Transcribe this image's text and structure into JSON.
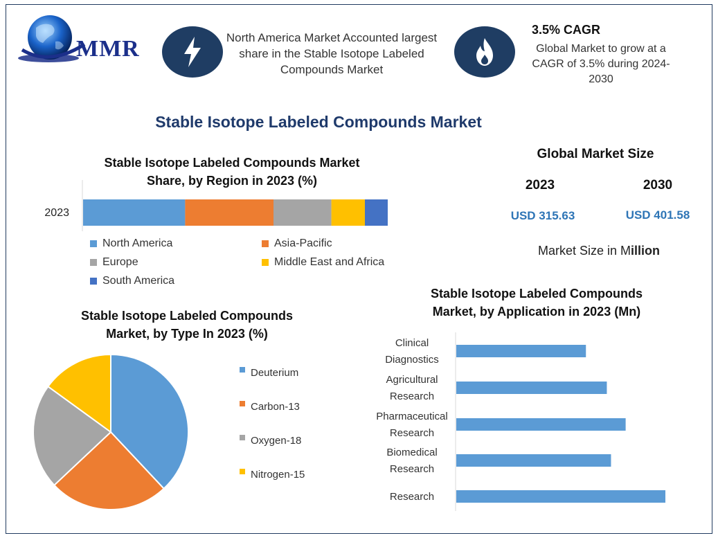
{
  "logo": {
    "text": "MMR"
  },
  "header": {
    "fact1": "North America Market Accounted largest share in the Stable Isotope Labeled Compounds Market",
    "cagr_title": "3.5% CAGR",
    "cagr_text": "Global Market to grow at a CAGR of 3.5% during 2024-2030"
  },
  "main_title": "Stable Isotope Labeled Compounds Market",
  "market_size": {
    "heading": "Global Market Size",
    "year1": "2023",
    "year2": "2030",
    "value1": "USD 315.63",
    "value2": "USD 401.58",
    "unit_prefix": "Market Size in M",
    "unit_suffix": "illion"
  },
  "colors": {
    "north_america": "#5b9bd5",
    "asia_pacific": "#ed7d31",
    "europe": "#a5a5a5",
    "mea": "#ffc000",
    "south_america": "#4472c4",
    "bar": "#5b9bd5"
  },
  "chart_data": [
    {
      "type": "bar",
      "orientation": "horizontal-stacked",
      "title_line1": "Stable Isotope Labeled Compounds Market",
      "title_line2": "Share, by Region in 2023 (%)",
      "categories": [
        "2023"
      ],
      "series": [
        {
          "name": "North America",
          "values": [
            33.5
          ],
          "color": "#5b9bd5"
        },
        {
          "name": "Asia-Pacific",
          "values": [
            29
          ],
          "color": "#ed7d31"
        },
        {
          "name": "Europe",
          "values": [
            19
          ],
          "color": "#a5a5a5"
        },
        {
          "name": "Middle East and Africa",
          "values": [
            11
          ],
          "color": "#ffc000"
        },
        {
          "name": "South America",
          "values": [
            7.5
          ],
          "color": "#4472c4"
        }
      ],
      "xlim": [
        0,
        100
      ],
      "legend": "bottom"
    },
    {
      "type": "pie",
      "title_line1": "Stable Isotope Labeled Compounds",
      "title_line2": "Market, by Type In 2023 (%)",
      "labels": [
        "Deuterium",
        "Carbon-13",
        "Oxygen-18",
        "Nitrogen-15"
      ],
      "values": [
        38,
        25,
        22,
        15
      ],
      "colors": [
        "#5b9bd5",
        "#ed7d31",
        "#a5a5a5",
        "#ffc000"
      ],
      "legend": "right"
    },
    {
      "type": "bar",
      "orientation": "horizontal",
      "title_line1": "Stable Isotope Labeled Compounds",
      "title_line2": "Market, by Application in 2023 (Mn)",
      "categories": [
        [
          "Clinical",
          "Diagnostics"
        ],
        [
          "Agricultural",
          "Research"
        ],
        [
          "Pharmaceutical",
          "Research"
        ],
        [
          "Biomedical",
          "Research"
        ],
        [
          "Research"
        ]
      ],
      "values": [
        62,
        72,
        81,
        74,
        100
      ],
      "xlim": [
        0,
        100
      ],
      "grid": false
    }
  ]
}
